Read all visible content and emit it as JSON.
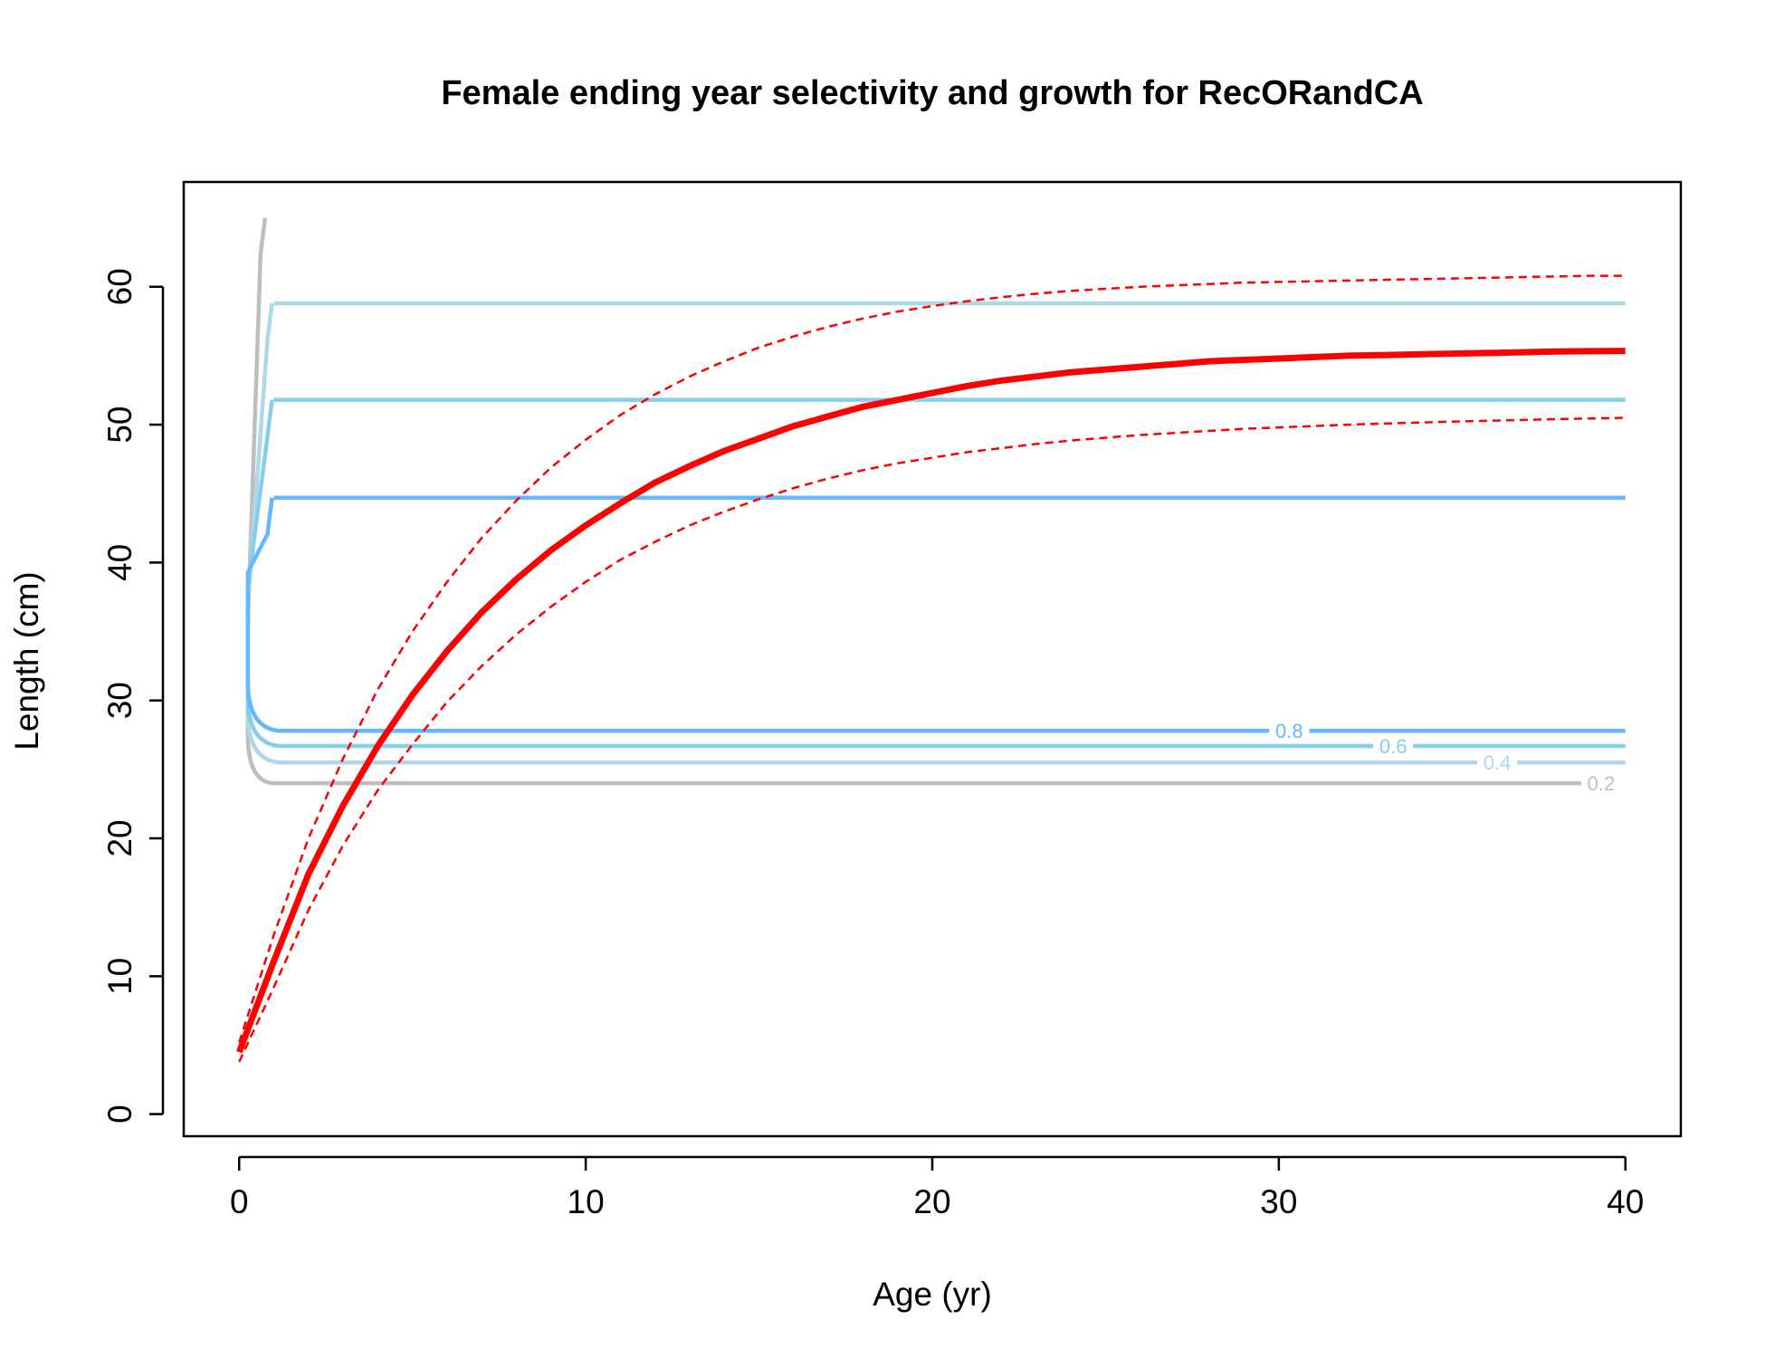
{
  "chart_data": {
    "type": "line",
    "title": "Female ending year selectivity and growth for RecORandCA",
    "xlabel": "Age (yr)",
    "ylabel": "Length (cm)",
    "xlim": [
      -1.6,
      41.6
    ],
    "ylim": [
      -1.6,
      67.6
    ],
    "x_ticks": [
      0,
      10,
      20,
      30,
      40
    ],
    "y_ticks": [
      0,
      10,
      20,
      30,
      40,
      50,
      60
    ],
    "grid": false,
    "legend": "none",
    "growth": {
      "color": "#ff0000",
      "ages": [
        0,
        1,
        2,
        3,
        4,
        5,
        6,
        7,
        8,
        9,
        10,
        11,
        12,
        13,
        14,
        15,
        16,
        17,
        18,
        19,
        20,
        21,
        22,
        23,
        24,
        25,
        26,
        27,
        28,
        29,
        30,
        31,
        32,
        33,
        34,
        35,
        36,
        37,
        38,
        39,
        40
      ],
      "mean": [
        4.5,
        11.1,
        17.4,
        22.4,
        26.7,
        30.4,
        33.6,
        36.4,
        38.8,
        40.9,
        42.7,
        44.3,
        45.8,
        47.0,
        48.1,
        49.0,
        49.9,
        50.6,
        51.3,
        51.8,
        52.3,
        52.8,
        53.2,
        53.5,
        53.8,
        54.0,
        54.2,
        54.4,
        54.6,
        54.7,
        54.8,
        54.9,
        55.0,
        55.05,
        55.1,
        55.15,
        55.2,
        55.25,
        55.3,
        55.33,
        55.35
      ],
      "upper": [
        5.2,
        13.0,
        20.0,
        25.8,
        30.8,
        35.0,
        38.6,
        41.8,
        44.5,
        46.9,
        48.9,
        50.7,
        52.2,
        53.5,
        54.6,
        55.6,
        56.4,
        57.1,
        57.7,
        58.2,
        58.6,
        58.95,
        59.25,
        59.5,
        59.7,
        59.85,
        60.0,
        60.1,
        60.2,
        60.3,
        60.35,
        60.4,
        60.45,
        60.5,
        60.55,
        60.6,
        60.65,
        60.7,
        60.75,
        60.8,
        60.8
      ],
      "lower": [
        3.8,
        9.2,
        14.8,
        19.5,
        23.5,
        26.8,
        29.9,
        32.5,
        34.8,
        36.8,
        38.6,
        40.2,
        41.5,
        42.7,
        43.7,
        44.6,
        45.4,
        46.1,
        46.7,
        47.2,
        47.6,
        48.0,
        48.3,
        48.6,
        48.85,
        49.05,
        49.25,
        49.4,
        49.55,
        49.7,
        49.8,
        49.9,
        50.0,
        50.08,
        50.15,
        50.22,
        50.28,
        50.34,
        50.4,
        50.45,
        50.5
      ]
    },
    "contours": [
      {
        "level": "0.2",
        "color": "#bebebe",
        "x_top": 0.8,
        "y_top": 65.0,
        "y_low": 24.0,
        "x_label": 39.3,
        "x_end": 40
      },
      {
        "level": "0.4",
        "color": "#add8e6",
        "x_top": 1.0,
        "y_top": 58.8,
        "y_low": 25.5,
        "x_label": 36.3,
        "x_end": 40
      },
      {
        "level": "0.6",
        "color": "#87ceeb",
        "x_top": 1.0,
        "y_top": 51.8,
        "y_low": 26.7,
        "x_label": 33.3,
        "x_end": 40
      },
      {
        "level": "0.8",
        "color": "#63b8ff",
        "x_top": 1.0,
        "y_top": 44.7,
        "y_low": 27.8,
        "x_label": 30.3,
        "x_end": 40
      }
    ]
  }
}
